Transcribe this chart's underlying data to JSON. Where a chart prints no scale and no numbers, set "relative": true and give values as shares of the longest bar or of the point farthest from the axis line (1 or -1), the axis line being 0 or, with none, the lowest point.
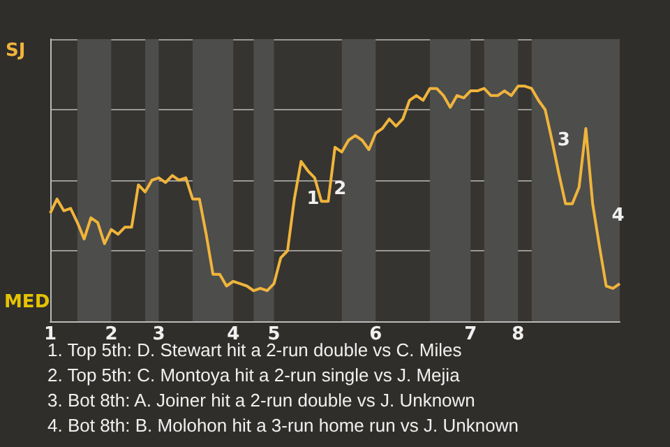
{
  "chart_data": {
    "type": "line",
    "relative": true,
    "categories": [
      "1",
      null,
      null,
      null,
      null,
      null,
      null,
      null,
      null,
      "2",
      null,
      null,
      null,
      null,
      null,
      null,
      "3",
      null,
      null,
      null,
      null,
      null,
      null,
      null,
      null,
      null,
      null,
      "4",
      null,
      null,
      null,
      null,
      null,
      "5",
      null,
      null,
      null,
      null,
      null,
      null,
      null,
      null,
      null,
      null,
      null,
      null,
      null,
      null,
      "6",
      null,
      null,
      null,
      null,
      null,
      null,
      null,
      null,
      null,
      null,
      null,
      null,
      null,
      "7",
      null,
      null,
      null,
      null,
      null,
      null,
      "8",
      null,
      null,
      null,
      null,
      null,
      null,
      null,
      null,
      null,
      null,
      null,
      null,
      null,
      null,
      null
    ],
    "series": [
      {
        "color": "#f0b43c",
        "values": [
          0.46,
          0.52,
          0.47,
          0.48,
          0.42,
          0.35,
          0.44,
          0.42,
          0.33,
          0.39,
          0.37,
          0.4,
          0.4,
          0.58,
          0.55,
          0.6,
          0.61,
          0.59,
          0.62,
          0.6,
          0.61,
          0.52,
          0.52,
          0.37,
          0.2,
          0.2,
          0.15,
          0.17,
          0.16,
          0.15,
          0.13,
          0.14,
          0.13,
          0.16,
          0.27,
          0.3,
          0.52,
          0.68,
          0.64,
          0.61,
          0.51,
          0.51,
          0.74,
          0.72,
          0.77,
          0.79,
          0.77,
          0.73,
          0.8,
          0.82,
          0.86,
          0.83,
          0.86,
          0.94,
          0.96,
          0.94,
          0.99,
          0.99,
          0.96,
          0.91,
          0.96,
          0.95,
          0.98,
          0.98,
          0.99,
          0.96,
          0.96,
          0.98,
          0.96,
          1,
          1,
          0.99,
          0.94,
          0.9,
          0.77,
          0.63,
          0.5,
          0.5,
          0.57,
          0.82,
          0.5,
          0.32,
          0.15,
          0.14,
          0.16
        ]
      }
    ],
    "grid": "y",
    "marker": "none",
    "line_style": "solid",
    "annotations": [
      "SJ",
      "MED",
      "1",
      "2",
      "3",
      "4",
      "1. Top 5th: D. Stewart hit a 2-run double vs C. Miles",
      "2. Top 5th: C. Montoya hit a 2-run single vs J. Mejia",
      "3. Bot 8th: A. Joiner hit a 2-run double vs J. Unknown",
      "4. Bot 8th: B. Molohon hit a 3-run home run vs J. Unknown"
    ]
  }
}
